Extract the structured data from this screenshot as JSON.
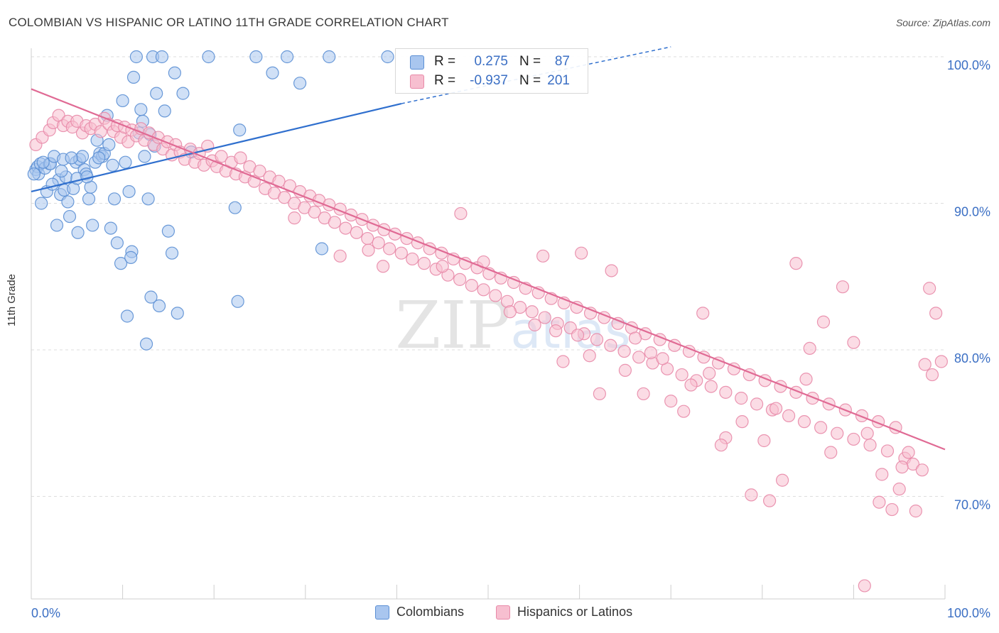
{
  "title": "COLOMBIAN VS HISPANIC OR LATINO 11TH GRADE CORRELATION CHART",
  "source": "Source: ZipAtlas.com",
  "watermark": "ZIPatlas",
  "colors": {
    "blue_fill": "#a9c6ef",
    "blue_stroke": "#5b8fd4",
    "blue_line": "#2f6fce",
    "pink_fill": "#f7bfd0",
    "pink_stroke": "#e889a8",
    "pink_line": "#e06a94",
    "tick_label": "#3b6fc4",
    "grid": "#dddddd"
  },
  "stats": [
    {
      "r_label": "R =",
      "r_value": "0.275",
      "n_label": "N =",
      "n_value": "87"
    },
    {
      "r_label": "R =",
      "r_value": "-0.937",
      "n_label": "N =",
      "n_value": "201"
    }
  ],
  "legend": [
    {
      "label": "Colombians"
    },
    {
      "label": "Hispanics or Latinos"
    }
  ],
  "chart_data": {
    "type": "scatter",
    "title": "COLOMBIAN VS HISPANIC OR LATINO 11TH GRADE CORRELATION CHART",
    "xlabel": "",
    "ylabel": "11th Grade",
    "xlim": [
      0,
      100
    ],
    "ylim": [
      63,
      100
    ],
    "x_tick_labels": [
      "0.0%",
      "100.0%"
    ],
    "y_ticks": [
      70,
      80,
      90,
      100
    ],
    "y_tick_labels": [
      "70.0%",
      "80.0%",
      "90.0%",
      "100.0%"
    ],
    "grid": true,
    "legend_position": "bottom",
    "series": [
      {
        "name": "Colombians",
        "trend": {
          "x": [
            0,
            40.5
          ],
          "y": [
            90.8,
            96.8
          ]
        },
        "trend_dashed": {
          "x": [
            40.5,
            70
          ],
          "y": [
            96.8,
            101.2
          ]
        },
        "points": [
          [
            0.5,
            92.3
          ],
          [
            0.7,
            92.5
          ],
          [
            0.8,
            92.0
          ],
          [
            1.0,
            92.7
          ],
          [
            1.1,
            90.0
          ],
          [
            1.5,
            92.4
          ],
          [
            1.7,
            90.8
          ],
          [
            2.0,
            92.7
          ],
          [
            2.1,
            92.7
          ],
          [
            2.5,
            93.2
          ],
          [
            2.8,
            88.5
          ],
          [
            3.0,
            91.6
          ],
          [
            3.2,
            90.6
          ],
          [
            3.5,
            93.0
          ],
          [
            3.6,
            90.9
          ],
          [
            3.8,
            91.8
          ],
          [
            4.0,
            90.1
          ],
          [
            4.2,
            89.1
          ],
          [
            4.6,
            91.0
          ],
          [
            4.9,
            92.8
          ],
          [
            5.1,
            88.0
          ],
          [
            5.3,
            93.0
          ],
          [
            5.6,
            93.2
          ],
          [
            5.8,
            92.3
          ],
          [
            6.0,
            92.0
          ],
          [
            6.3,
            90.3
          ],
          [
            6.5,
            91.1
          ],
          [
            6.7,
            88.5
          ],
          [
            7.0,
            92.8
          ],
          [
            7.2,
            94.3
          ],
          [
            7.5,
            93.4
          ],
          [
            7.8,
            93.2
          ],
          [
            8.0,
            93.4
          ],
          [
            8.3,
            96.0
          ],
          [
            8.5,
            94.0
          ],
          [
            8.7,
            88.3
          ],
          [
            9.1,
            90.3
          ],
          [
            9.4,
            87.3
          ],
          [
            9.8,
            85.9
          ],
          [
            10.0,
            97.0
          ],
          [
            10.3,
            92.8
          ],
          [
            10.5,
            82.3
          ],
          [
            10.7,
            90.8
          ],
          [
            11.0,
            86.7
          ],
          [
            11.2,
            98.6
          ],
          [
            11.5,
            100.0
          ],
          [
            12.0,
            96.4
          ],
          [
            12.2,
            95.6
          ],
          [
            12.4,
            93.2
          ],
          [
            12.6,
            80.4
          ],
          [
            12.8,
            90.3
          ],
          [
            13.0,
            94.7
          ],
          [
            13.1,
            83.6
          ],
          [
            13.3,
            100.0
          ],
          [
            13.7,
            97.5
          ],
          [
            14.0,
            83.0
          ],
          [
            14.3,
            100.0
          ],
          [
            14.6,
            96.3
          ],
          [
            15.0,
            88.1
          ],
          [
            15.4,
            86.6
          ],
          [
            15.7,
            98.9
          ],
          [
            16.0,
            82.5
          ],
          [
            16.6,
            97.5
          ],
          [
            17.5,
            93.5
          ],
          [
            19.4,
            100.0
          ],
          [
            22.3,
            89.7
          ],
          [
            22.6,
            83.3
          ],
          [
            22.8,
            95.0
          ],
          [
            24.6,
            100.0
          ],
          [
            26.4,
            98.9
          ],
          [
            28.0,
            100.0
          ],
          [
            29.4,
            98.2
          ],
          [
            31.8,
            86.9
          ],
          [
            32.6,
            100.0
          ],
          [
            39.0,
            100.0
          ],
          [
            0.3,
            92.0
          ],
          [
            1.3,
            92.8
          ],
          [
            2.3,
            91.3
          ],
          [
            3.3,
            92.2
          ],
          [
            4.4,
            93.1
          ],
          [
            5.0,
            91.7
          ],
          [
            6.1,
            91.8
          ],
          [
            7.4,
            93.1
          ],
          [
            8.9,
            92.6
          ],
          [
            11.8,
            94.8
          ],
          [
            13.5,
            93.9
          ],
          [
            10.9,
            86.3
          ]
        ]
      },
      {
        "name": "Hispanics or Latinos",
        "trend": {
          "x": [
            0,
            100
          ],
          "y": [
            97.8,
            73.2
          ]
        },
        "points": [
          [
            0.5,
            94.0
          ],
          [
            1.2,
            94.5
          ],
          [
            2.0,
            95.0
          ],
          [
            2.4,
            95.5
          ],
          [
            3.0,
            96.0
          ],
          [
            3.5,
            95.3
          ],
          [
            4.0,
            95.6
          ],
          [
            4.5,
            95.2
          ],
          [
            5.0,
            95.6
          ],
          [
            5.6,
            94.8
          ],
          [
            6.0,
            95.3
          ],
          [
            6.5,
            95.1
          ],
          [
            7.0,
            95.4
          ],
          [
            7.6,
            94.9
          ],
          [
            8.0,
            95.8
          ],
          [
            8.5,
            95.4
          ],
          [
            9.0,
            94.9
          ],
          [
            9.4,
            95.3
          ],
          [
            9.8,
            94.5
          ],
          [
            10.2,
            95.2
          ],
          [
            10.6,
            94.2
          ],
          [
            11.0,
            95.0
          ],
          [
            11.5,
            94.6
          ],
          [
            12.0,
            95.1
          ],
          [
            12.4,
            94.3
          ],
          [
            12.9,
            94.8
          ],
          [
            13.4,
            94.0
          ],
          [
            13.9,
            94.5
          ],
          [
            14.4,
            93.7
          ],
          [
            14.9,
            94.2
          ],
          [
            15.4,
            93.3
          ],
          [
            15.8,
            94.0
          ],
          [
            16.3,
            93.5
          ],
          [
            16.8,
            93.0
          ],
          [
            17.4,
            93.7
          ],
          [
            17.9,
            92.8
          ],
          [
            18.4,
            93.4
          ],
          [
            18.9,
            92.6
          ],
          [
            19.3,
            93.9
          ],
          [
            19.8,
            92.9
          ],
          [
            20.3,
            92.5
          ],
          [
            20.8,
            93.2
          ],
          [
            21.3,
            92.2
          ],
          [
            21.9,
            92.8
          ],
          [
            22.4,
            92.0
          ],
          [
            22.9,
            93.1
          ],
          [
            23.4,
            91.8
          ],
          [
            23.9,
            92.5
          ],
          [
            24.4,
            91.5
          ],
          [
            25.0,
            92.2
          ],
          [
            25.6,
            91.0
          ],
          [
            26.1,
            91.8
          ],
          [
            26.6,
            90.7
          ],
          [
            27.1,
            91.5
          ],
          [
            27.7,
            90.4
          ],
          [
            28.3,
            91.2
          ],
          [
            28.8,
            90.0
          ],
          [
            29.4,
            90.8
          ],
          [
            29.9,
            89.7
          ],
          [
            30.5,
            90.5
          ],
          [
            31.0,
            89.4
          ],
          [
            31.5,
            90.2
          ],
          [
            32.1,
            89.0
          ],
          [
            32.6,
            89.9
          ],
          [
            33.2,
            88.7
          ],
          [
            33.8,
            89.6
          ],
          [
            34.4,
            88.3
          ],
          [
            35.0,
            89.2
          ],
          [
            35.6,
            88.0
          ],
          [
            36.2,
            88.9
          ],
          [
            36.8,
            87.6
          ],
          [
            37.4,
            88.5
          ],
          [
            38.0,
            87.3
          ],
          [
            38.6,
            88.2
          ],
          [
            39.2,
            86.9
          ],
          [
            39.8,
            87.9
          ],
          [
            40.5,
            86.6
          ],
          [
            41.1,
            87.6
          ],
          [
            41.7,
            86.2
          ],
          [
            42.3,
            87.3
          ],
          [
            43.0,
            85.9
          ],
          [
            43.6,
            86.9
          ],
          [
            44.3,
            85.5
          ],
          [
            44.9,
            86.6
          ],
          [
            45.6,
            85.1
          ],
          [
            46.2,
            86.2
          ],
          [
            46.9,
            84.8
          ],
          [
            47.5,
            85.9
          ],
          [
            48.2,
            84.4
          ],
          [
            48.8,
            85.6
          ],
          [
            49.5,
            84.1
          ],
          [
            50.1,
            85.2
          ],
          [
            50.8,
            83.7
          ],
          [
            51.4,
            84.9
          ],
          [
            52.1,
            83.3
          ],
          [
            52.8,
            84.6
          ],
          [
            53.5,
            82.9
          ],
          [
            54.1,
            84.2
          ],
          [
            54.8,
            82.6
          ],
          [
            55.5,
            83.9
          ],
          [
            56.2,
            82.2
          ],
          [
            56.9,
            83.5
          ],
          [
            57.6,
            81.8
          ],
          [
            58.3,
            83.2
          ],
          [
            59.0,
            81.5
          ],
          [
            59.7,
            82.9
          ],
          [
            60.5,
            81.1
          ],
          [
            61.2,
            82.5
          ],
          [
            61.9,
            80.7
          ],
          [
            62.7,
            82.2
          ],
          [
            63.4,
            80.3
          ],
          [
            64.2,
            81.8
          ],
          [
            64.9,
            79.9
          ],
          [
            65.7,
            81.5
          ],
          [
            66.5,
            79.5
          ],
          [
            67.2,
            81.1
          ],
          [
            68.0,
            79.1
          ],
          [
            68.8,
            80.7
          ],
          [
            69.6,
            78.7
          ],
          [
            70.4,
            80.3
          ],
          [
            71.2,
            78.3
          ],
          [
            72.0,
            79.9
          ],
          [
            72.8,
            77.9
          ],
          [
            73.6,
            79.5
          ],
          [
            74.4,
            77.5
          ],
          [
            75.2,
            79.1
          ],
          [
            76.0,
            77.1
          ],
          [
            76.9,
            78.7
          ],
          [
            77.7,
            76.7
          ],
          [
            78.6,
            78.3
          ],
          [
            79.4,
            76.3
          ],
          [
            80.3,
            77.9
          ],
          [
            81.1,
            75.9
          ],
          [
            82.0,
            77.5
          ],
          [
            82.9,
            75.5
          ],
          [
            83.7,
            77.1
          ],
          [
            84.6,
            75.1
          ],
          [
            85.5,
            76.7
          ],
          [
            86.4,
            74.7
          ],
          [
            87.3,
            76.3
          ],
          [
            88.2,
            74.3
          ],
          [
            89.1,
            75.9
          ],
          [
            90.0,
            73.9
          ],
          [
            90.9,
            75.5
          ],
          [
            91.8,
            73.5
          ],
          [
            92.7,
            75.1
          ],
          [
            93.7,
            73.1
          ],
          [
            94.6,
            74.7
          ],
          [
            95.6,
            72.6
          ],
          [
            96.5,
            72.2
          ],
          [
            97.5,
            71.8
          ],
          [
            98.3,
            84.2
          ],
          [
            99.0,
            82.5
          ],
          [
            99.6,
            79.2
          ],
          [
            47.0,
            89.3
          ],
          [
            49.5,
            86.0
          ],
          [
            56.0,
            86.4
          ],
          [
            60.2,
            86.6
          ],
          [
            63.5,
            85.4
          ],
          [
            65.0,
            78.6
          ],
          [
            67.0,
            77.0
          ],
          [
            70.0,
            76.5
          ],
          [
            73.5,
            82.5
          ],
          [
            76.0,
            74.0
          ],
          [
            77.8,
            75.1
          ],
          [
            78.8,
            70.1
          ],
          [
            80.2,
            73.8
          ],
          [
            82.2,
            71.1
          ],
          [
            83.7,
            85.9
          ],
          [
            85.2,
            80.1
          ],
          [
            86.7,
            81.9
          ],
          [
            88.8,
            84.3
          ],
          [
            90.0,
            80.5
          ],
          [
            91.5,
            74.3
          ],
          [
            92.8,
            69.6
          ],
          [
            94.2,
            69.1
          ],
          [
            95.0,
            70.5
          ],
          [
            96.8,
            69.0
          ],
          [
            97.8,
            79.0
          ],
          [
            98.6,
            78.3
          ],
          [
            58.2,
            79.2
          ],
          [
            62.2,
            77.0
          ],
          [
            67.8,
            79.8
          ],
          [
            72.2,
            77.6
          ],
          [
            75.5,
            73.5
          ],
          [
            81.5,
            76.0
          ],
          [
            84.8,
            78.0
          ],
          [
            87.5,
            73.0
          ],
          [
            91.2,
            63.9
          ],
          [
            93.1,
            71.5
          ],
          [
            95.3,
            72.0
          ],
          [
            96.0,
            73.0
          ],
          [
            38.5,
            85.7
          ],
          [
            36.9,
            86.8
          ],
          [
            33.8,
            86.4
          ],
          [
            28.8,
            89.0
          ],
          [
            45.0,
            85.7
          ],
          [
            52.4,
            82.6
          ],
          [
            55.1,
            81.7
          ],
          [
            57.4,
            81.3
          ],
          [
            59.8,
            81.0
          ],
          [
            61.1,
            79.6
          ],
          [
            66.1,
            80.8
          ],
          [
            69.1,
            79.4
          ],
          [
            71.4,
            75.8
          ],
          [
            74.2,
            78.4
          ],
          [
            80.8,
            69.7
          ]
        ]
      }
    ]
  }
}
